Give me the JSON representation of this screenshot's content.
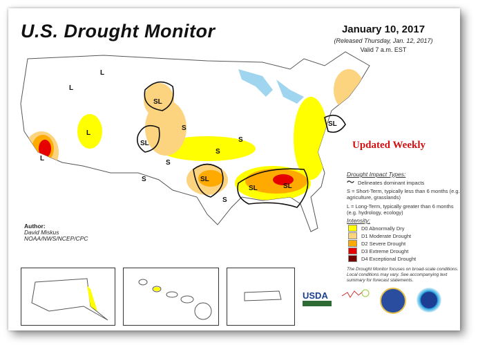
{
  "header": {
    "title": "U.S. Drought Monitor",
    "date": "January 10, 2017",
    "released": "(Released Thursday, Jan. 12, 2017)",
    "valid": "Valid 7 a.m. EST"
  },
  "banner": "Updated Weekly",
  "author": {
    "label": "Author:",
    "name": "David Miskus",
    "org": "NOAA/NWS/NCEP/CPC"
  },
  "legend": {
    "impact_title": "Drought Impact Types:",
    "delineates": "Delineates dominant impacts",
    "short_term": "S = Short-Term, typically less than 6 months (e.g. agriculture, grasslands)",
    "long_term": "L = Long-Term, typically greater than 6 months (e.g. hydrology, ecology)",
    "intensity_title": "Intensity:",
    "intensity": [
      {
        "label": "D0 Abnormally Dry",
        "color": "#ffff00"
      },
      {
        "label": "D1 Moderate Drought",
        "color": "#fcd37f"
      },
      {
        "label": "D2 Severe Drought",
        "color": "#ffaa00"
      },
      {
        "label": "D3 Extreme Drought",
        "color": "#e60000"
      },
      {
        "label": "D4 Exceptional Drought",
        "color": "#730000"
      }
    ],
    "note": "The Drought Monitor focuses on broad-scale conditions. Local conditions may vary. See accompanying text summary for forecast statements."
  },
  "map_labels": {
    "L": "L",
    "S": "S",
    "SL": "SL"
  },
  "logos": [
    "USDA",
    "National Drought Mitigation Center",
    "Department of Commerce",
    "NOAA"
  ]
}
